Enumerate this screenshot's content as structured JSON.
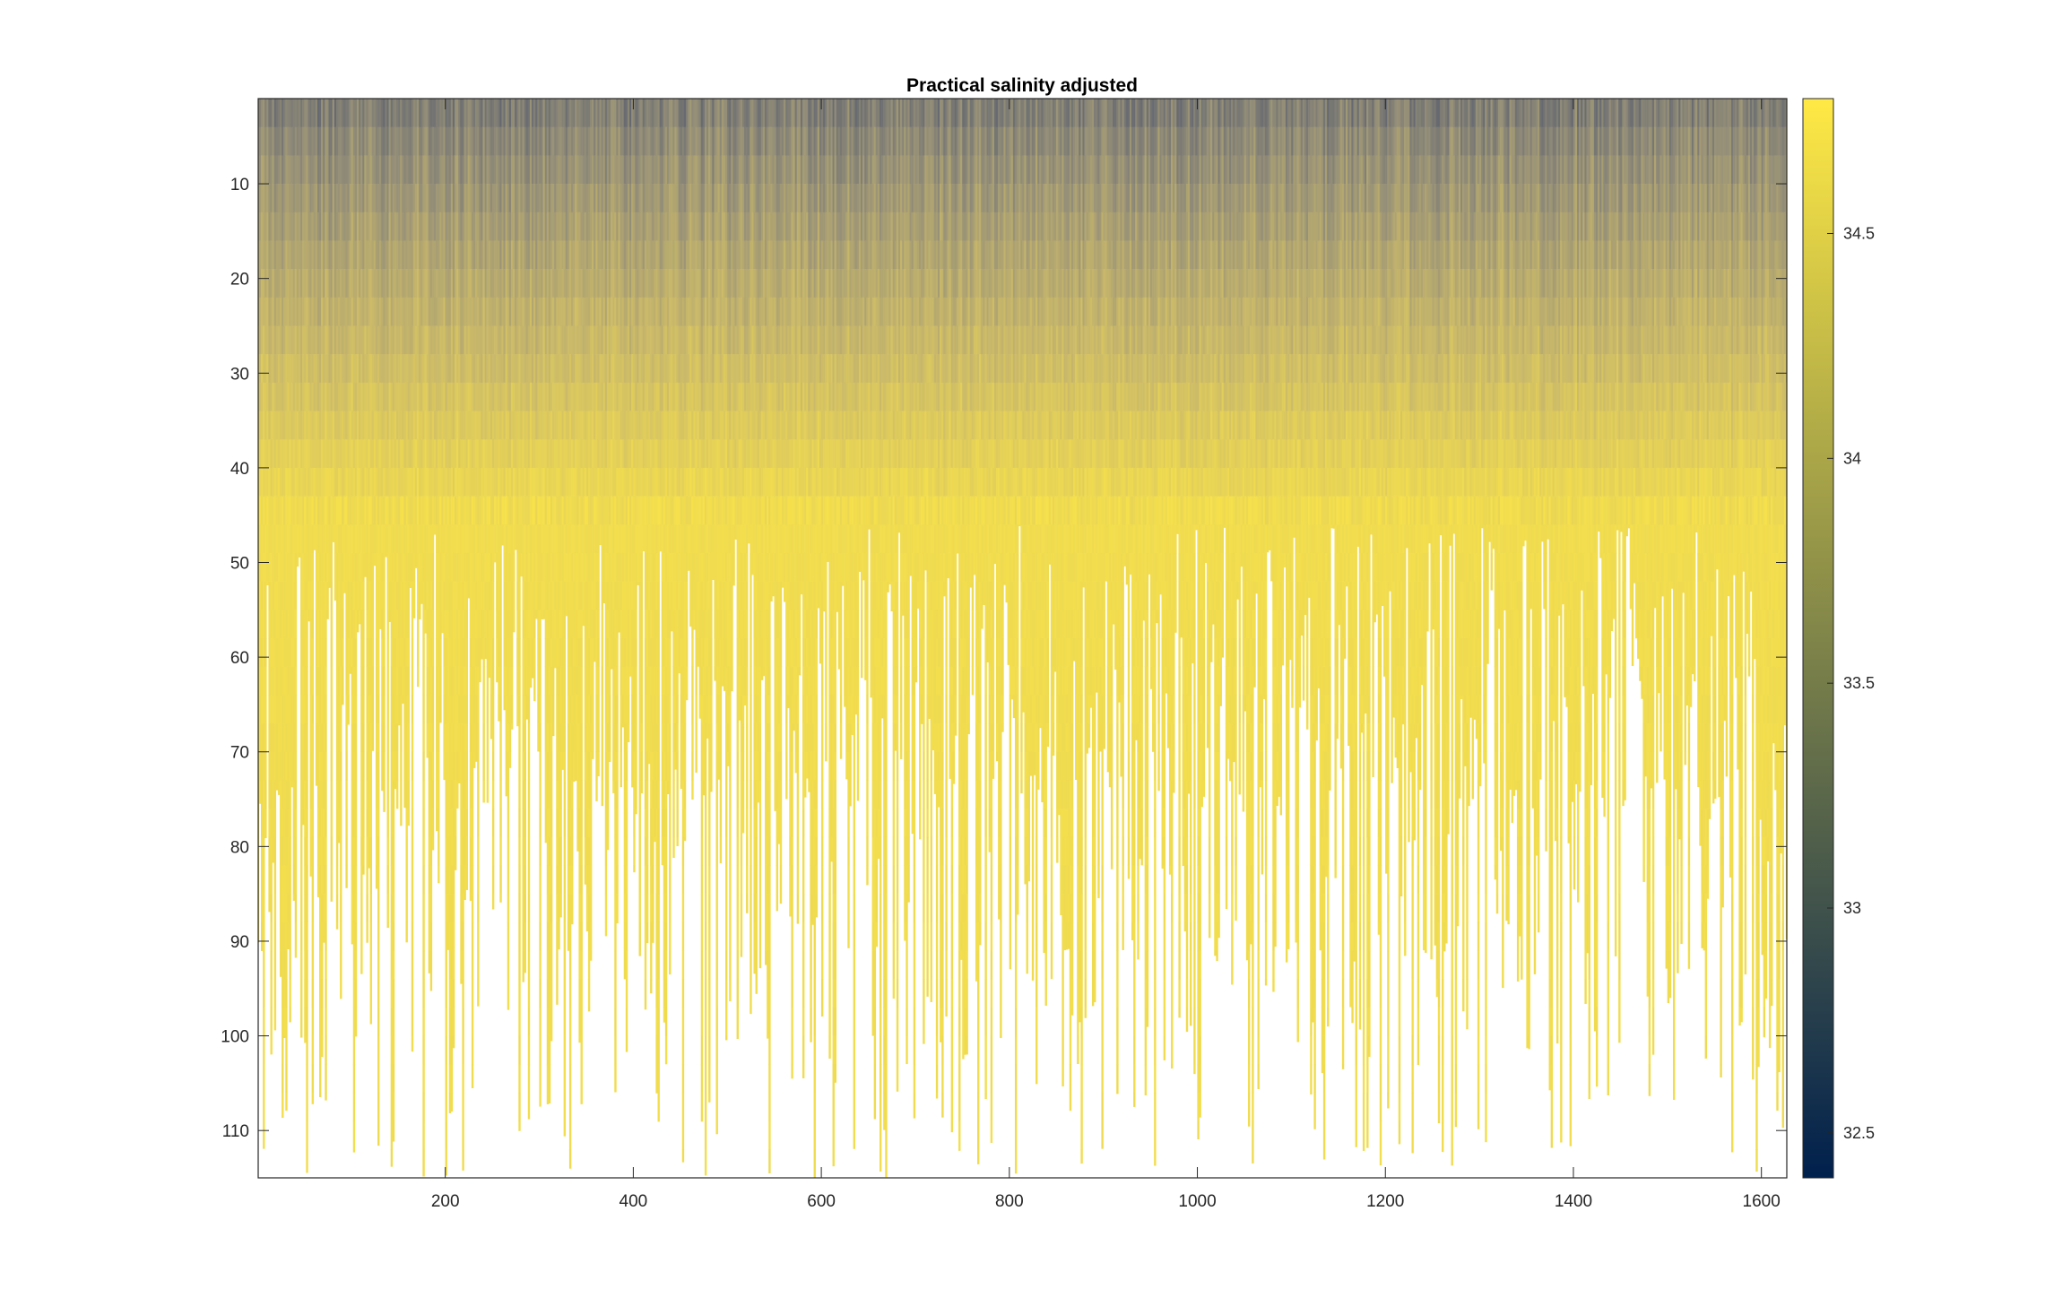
{
  "chart_data": {
    "type": "heatmap",
    "title": "Practical salinity adjusted",
    "xlabel": "",
    "ylabel": "",
    "xlim": [
      1,
      1627
    ],
    "ylim": [
      1,
      115
    ],
    "y_reversed": true,
    "x_ticks": [
      200,
      400,
      600,
      800,
      1000,
      1200,
      1400,
      1600
    ],
    "y_ticks": [
      10,
      20,
      30,
      40,
      50,
      60,
      70,
      80,
      90,
      100,
      110
    ],
    "colorbar": {
      "clim": [
        32.4,
        34.8
      ],
      "ticks": [
        32.5,
        33,
        33.5,
        34,
        34.5
      ],
      "colormap": "cividis",
      "colormap_stops": [
        "#00204d",
        "#31446b",
        "#666970",
        "#958f78",
        "#cbba69",
        "#ffe945"
      ]
    },
    "profiles": {
      "count": 1627,
      "depth_levels": 115,
      "surface_value_range": [
        33.4,
        33.9
      ],
      "max_value_near_depth": 45,
      "max_value": 34.7,
      "typical_valid_depth_range": [
        46,
        115
      ]
    },
    "grid": false,
    "box": true
  }
}
